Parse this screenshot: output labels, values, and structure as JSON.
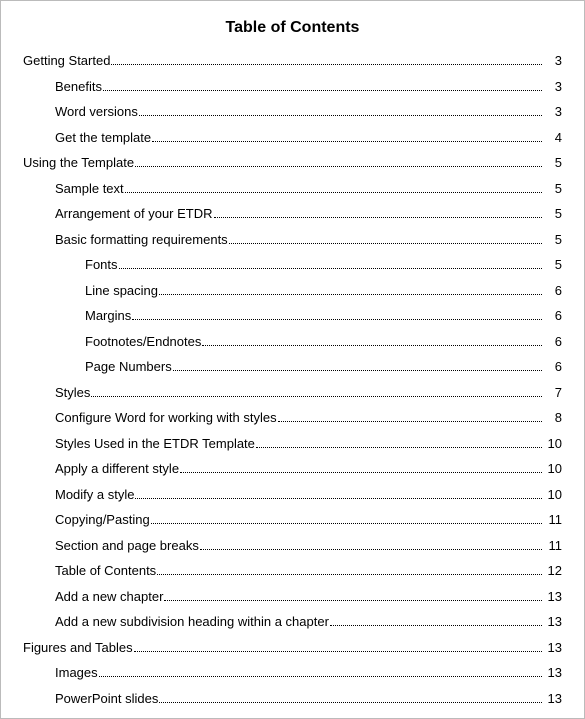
{
  "title": "Table of Contents",
  "entries": [
    {
      "label": "Getting Started",
      "page": "3",
      "indent": 0
    },
    {
      "label": "Benefits",
      "page": "3",
      "indent": 1
    },
    {
      "label": "Word versions",
      "page": "3",
      "indent": 1
    },
    {
      "label": "Get the template",
      "page": "4",
      "indent": 1
    },
    {
      "label": "Using the Template",
      "page": "5",
      "indent": 0
    },
    {
      "label": "Sample text",
      "page": "5",
      "indent": 1
    },
    {
      "label": "Arrangement of your ETDR",
      "page": "5",
      "indent": 1
    },
    {
      "label": "Basic formatting requirements",
      "page": "5",
      "indent": 1
    },
    {
      "label": "Fonts",
      "page": "5",
      "indent": 2
    },
    {
      "label": "Line spacing",
      "page": "6",
      "indent": 2
    },
    {
      "label": "Margins",
      "page": "6",
      "indent": 2
    },
    {
      "label": "Footnotes/Endnotes",
      "page": "6",
      "indent": 2
    },
    {
      "label": "Page Numbers",
      "page": "6",
      "indent": 2
    },
    {
      "label": "Styles",
      "page": "7",
      "indent": 1
    },
    {
      "label": "Configure Word for working with styles",
      "page": "8",
      "indent": 1
    },
    {
      "label": "Styles Used in the ETDR Template",
      "page": "10",
      "indent": 1
    },
    {
      "label": "Apply a different style",
      "page": "10",
      "indent": 1
    },
    {
      "label": "Modify a style",
      "page": "10",
      "indent": 1
    },
    {
      "label": "Copying/Pasting",
      "page": "11",
      "indent": 1
    },
    {
      "label": "Section and page breaks",
      "page": "11",
      "indent": 1
    },
    {
      "label": "Table of Contents",
      "page": "12",
      "indent": 1
    },
    {
      "label": "Add a new chapter",
      "page": "13",
      "indent": 1
    },
    {
      "label": "Add a new subdivision heading within a chapter",
      "page": "13",
      "indent": 1
    },
    {
      "label": "Figures and Tables",
      "page": "13",
      "indent": 0
    },
    {
      "label": "Images",
      "page": "13",
      "indent": 1
    },
    {
      "label": "PowerPoint slides",
      "page": "13",
      "indent": 1
    }
  ]
}
